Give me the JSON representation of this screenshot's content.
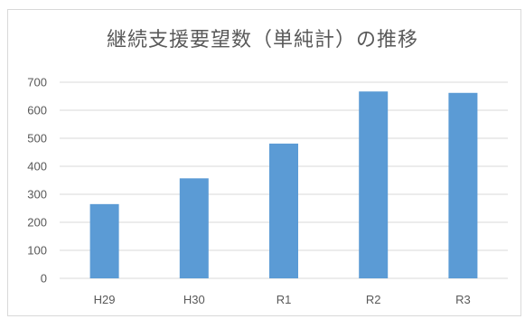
{
  "chart_data": {
    "type": "bar",
    "title": "継続支援要望数（単純計）の推移",
    "categories": [
      "H29",
      "H30",
      "R1",
      "R2",
      "R3"
    ],
    "values": [
      265,
      357,
      481,
      667,
      662
    ],
    "ylim": [
      0,
      700
    ],
    "yticks": [
      0,
      100,
      200,
      300,
      400,
      500,
      600,
      700
    ],
    "grid": true,
    "legend": "none",
    "colors": {
      "bar": "#5b9bd5",
      "grid": "#d9d9d9",
      "text": "#595959"
    }
  }
}
